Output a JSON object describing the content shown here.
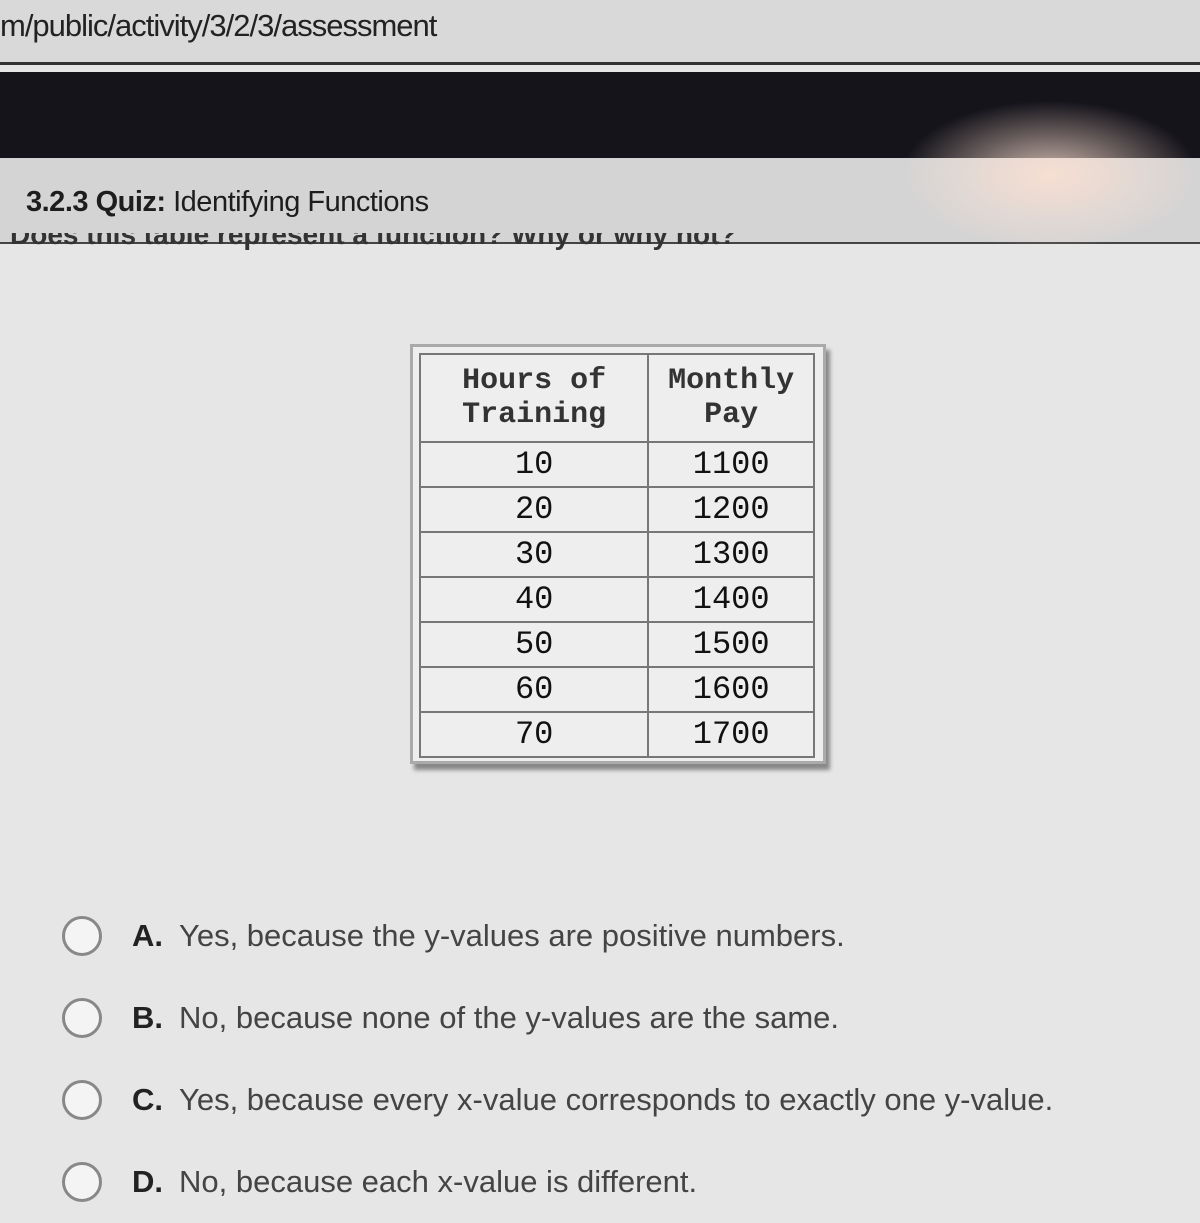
{
  "browser": {
    "url": "m/public/activity/3/2/3/assessment"
  },
  "header": {
    "quiz_number": "3.2.3",
    "quiz_label": "Quiz:",
    "title": "Identifying Functions"
  },
  "question": "Does this table represent a function? Why or why not?",
  "table": {
    "headers": [
      "Hours of Training",
      "Monthly Pay"
    ],
    "rows": [
      [
        "10",
        "1100"
      ],
      [
        "20",
        "1200"
      ],
      [
        "30",
        "1300"
      ],
      [
        "40",
        "1400"
      ],
      [
        "50",
        "1500"
      ],
      [
        "60",
        "1600"
      ],
      [
        "70",
        "1700"
      ]
    ]
  },
  "options": [
    {
      "letter": "A.",
      "text": "Yes, because the y-values are positive numbers."
    },
    {
      "letter": "B.",
      "text": "No, because none of the y-values are the same."
    },
    {
      "letter": "C.",
      "text": "Yes, because every x-value corresponds to exactly one y-value."
    },
    {
      "letter": "D.",
      "text": "No, because each x-value is different."
    }
  ]
}
